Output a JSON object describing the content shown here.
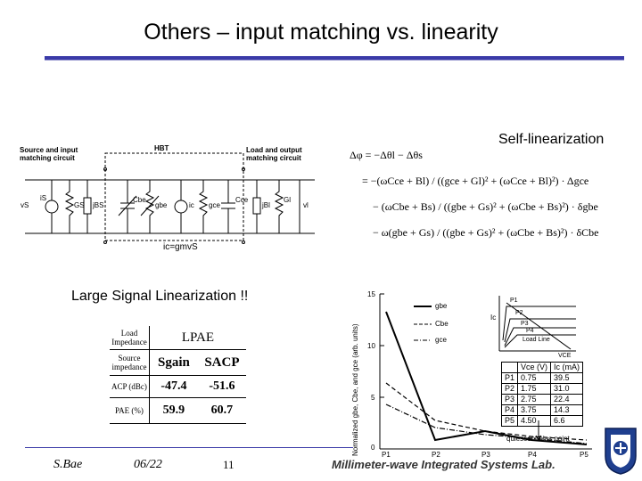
{
  "slide": {
    "title": "Others – input matching vs. linearity",
    "self_linearization_label": "Self-linearization",
    "large_signal_label": "Large Signal Linearization !!"
  },
  "circuit": {
    "source_label": "Source and input\nmatching circuit",
    "hbt_label": "HBT",
    "load_label": "Load and output\nmatching circuit",
    "labels": [
      "vS",
      "iS",
      "GS",
      "jBS",
      "Cbe",
      "gbe",
      "ic",
      "gce",
      "Cce",
      "jBl",
      "Gl",
      "vl"
    ],
    "bottom_label": "ic=gmvS"
  },
  "equation": {
    "lines": [
      "Δφ = −Δθl − Δθs",
      "= −(ωCce + Bl) / ((gce + Gl)² + (ωCce + Bl)²) · Δgce",
      "− (ωCbe + Bs) / ((gbe + Gs)² + (ωCbe + Bs)²) · δgbe",
      "− ω(gbe + Gs) / ((gbe + Gs)² + (ωCbe + Bs)²) · δCbe"
    ]
  },
  "pae_table": {
    "header_col1": "Load\nImpedance",
    "header_col2": "LPAE",
    "rows": [
      {
        "label": "Source\nimpedance",
        "v1": "Sgain",
        "v2": "SACP"
      },
      {
        "label": "ACP (dBc)",
        "v1": "-47.4",
        "v2": "-51.6"
      },
      {
        "label": "PAE (%)",
        "v1": "59.9",
        "v2": "60.7"
      }
    ]
  },
  "graph": {
    "y_label": "Normalized gbe, Cbe, and gce (arb. units)",
    "y_ticks": [
      "15",
      "10",
      "5",
      "0"
    ],
    "x_ticks": [
      "P1",
      "P2",
      "P3",
      "P4",
      "P5"
    ],
    "legend": [
      "gbe",
      "Cbe",
      "gce"
    ],
    "quiescent_label": "quiescent bias point",
    "inset_ylabel": "Ic",
    "inset_xlabel": "VCE",
    "inset_points": [
      "P1",
      "P2",
      "P3",
      "P4",
      "Load Line"
    ],
    "bias_table": {
      "headers": [
        "",
        "Vce (V)",
        "Ic (mA)"
      ],
      "rows": [
        [
          "P1",
          "0.75",
          "39.5"
        ],
        [
          "P2",
          "1.75",
          "31.0"
        ],
        [
          "P3",
          "2.75",
          "22.4"
        ],
        [
          "P4",
          "3.75",
          "14.3"
        ],
        [
          "P5",
          "4.50",
          "6.6"
        ]
      ]
    }
  },
  "footer": {
    "author": "S.Bae",
    "date": "06/22",
    "page": "11",
    "lab": "Millimeter-wave Integrated Systems Lab."
  },
  "colors": {
    "accent": "#3a3aa8"
  }
}
